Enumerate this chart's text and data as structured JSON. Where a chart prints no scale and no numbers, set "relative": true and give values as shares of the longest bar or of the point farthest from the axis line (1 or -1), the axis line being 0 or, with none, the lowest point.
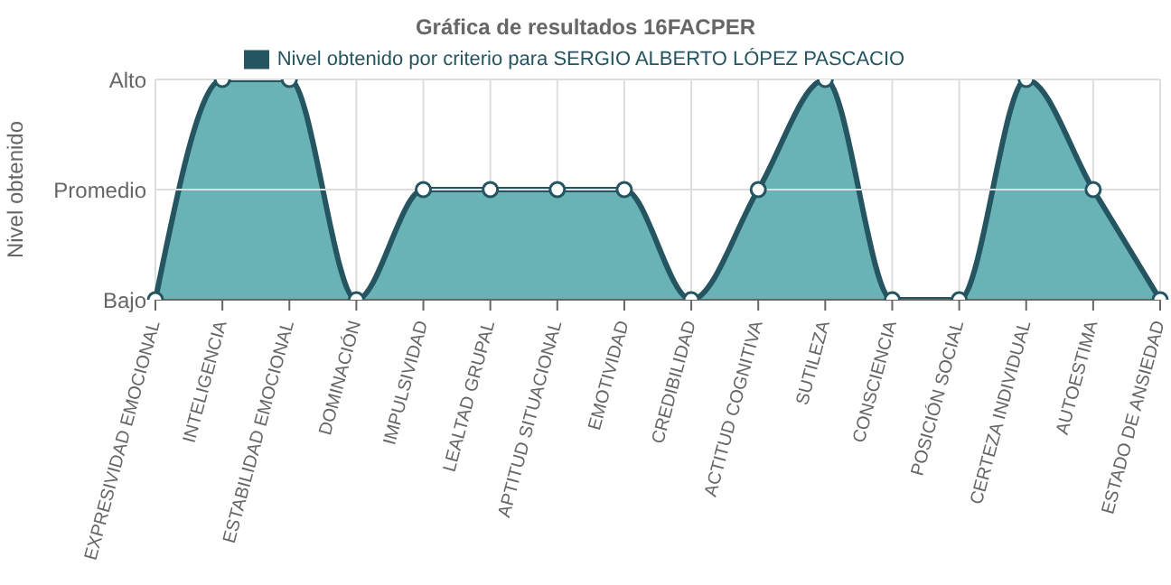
{
  "chart_data": {
    "type": "area",
    "title": "Gráfica de resultados 16FACPER",
    "ylabel": "Nivel obtenido",
    "categories": [
      "EXPRESIVIDAD EMOCIONAL",
      "INTELIGENCIA",
      "ESTABILIDAD EMOCIONAL",
      "DOMINACIÓN",
      "IMPULSIVIDAD",
      "LEALTAD GRUPAL",
      "APTITUD SITUACIONAL",
      "EMOTIVIDAD",
      "CREDIBILIDAD",
      "ACTITUD COGNITIVA",
      "SUTILEZA",
      "CONSCIENCIA",
      "POSICIÓN SOCIAL",
      "CERTEZA INDIVIDUAL",
      "AUTOESTIMA",
      "ESTADO DE ANSIEDAD"
    ],
    "series": [
      {
        "name": "Nivel obtenido por criterio para SERGIO ALBERTO LÓPEZ PASCACIO",
        "color": "#6ab3b5",
        "values": [
          0,
          1,
          1,
          0,
          0.5,
          0.5,
          0.5,
          0.5,
          0,
          0.5,
          1,
          0,
          0,
          1,
          0.5,
          0
        ]
      }
    ],
    "relative": true,
    "annotations": [
      "Alto",
      "Promedio",
      "Bajo"
    ],
    "grid": "x",
    "legend": "top",
    "marker": "circle"
  }
}
